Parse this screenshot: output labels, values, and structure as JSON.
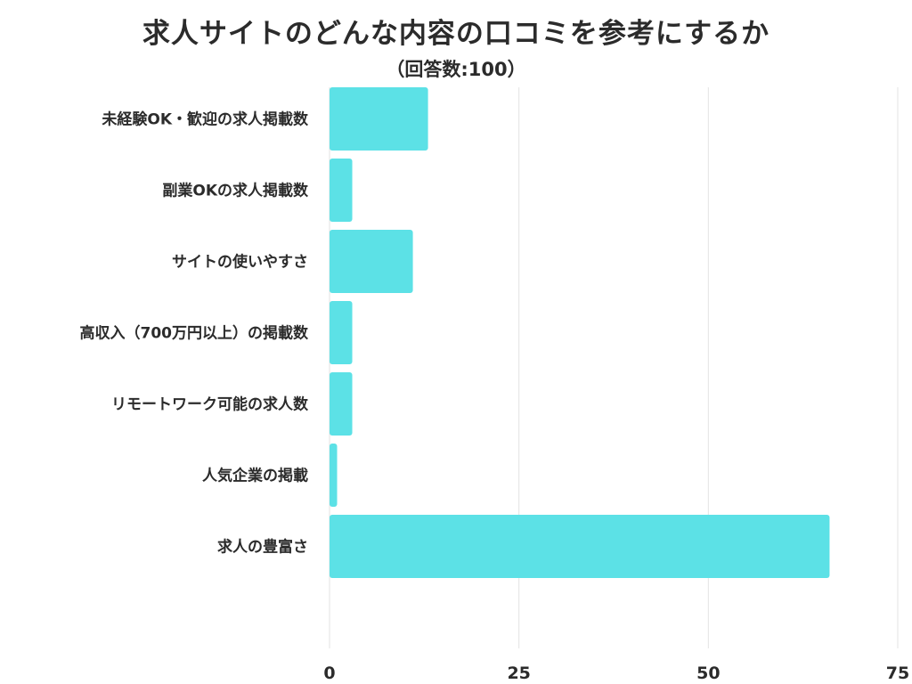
{
  "chart_data": {
    "type": "bar",
    "orientation": "horizontal",
    "title": "求人サイトのどんな内容の口コミを参考にするか",
    "subtitle": "（回答数:100）",
    "categories": [
      "未経験OK・歓迎の求人掲載数",
      "副業OKの求人掲載数",
      "サイトの使いやすさ",
      "高収入（700万円以上）の掲載数",
      "リモートワーク可能の求人数",
      "人気企業の掲載",
      "求人の豊富さ"
    ],
    "values": [
      13,
      3,
      11,
      3,
      3,
      1,
      66
    ],
    "xlim": [
      0,
      75
    ],
    "xticks": [
      "0",
      "25",
      "50",
      "75"
    ],
    "grid": true,
    "legend": "none",
    "colors": {
      "bar": "#5ce1e6",
      "grid": "#e3e3e3",
      "text": "#2b2b2b"
    }
  }
}
